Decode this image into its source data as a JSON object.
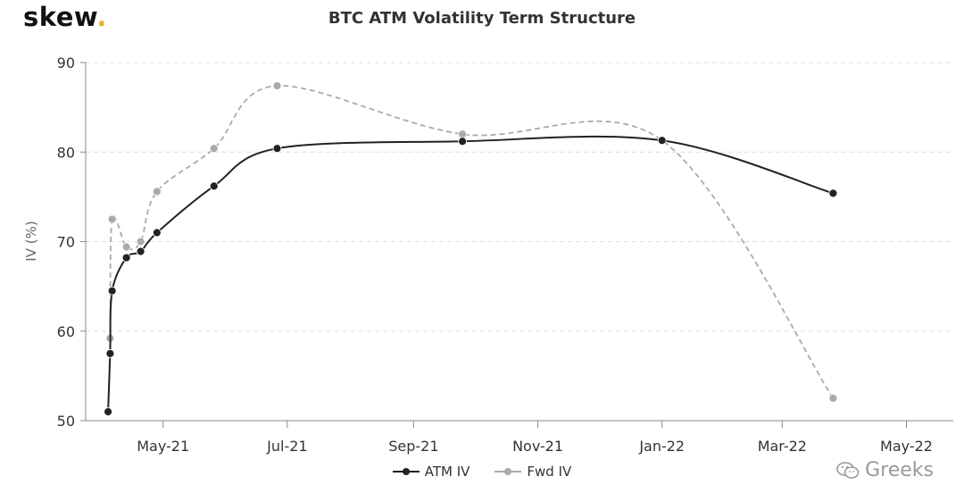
{
  "brand": {
    "name": "skew",
    "dot": ".",
    "dot_color": "#e8b227"
  },
  "watermark": {
    "text": "Greeks",
    "icon": "wechat-icon"
  },
  "colors": {
    "atm": "#222222",
    "fwd": "#aaaaaa",
    "grid": "#dddddd"
  },
  "chart_data": {
    "type": "line",
    "title": "BTC ATM Volatility Term Structure",
    "xlabel": "",
    "ylabel": "IV (%)",
    "ylim": [
      50,
      90
    ],
    "yticks": [
      50,
      60,
      70,
      80,
      90
    ],
    "xlim": [
      "2021-03-23",
      "2022-05-23"
    ],
    "xticks": [
      {
        "date": "2021-04-30",
        "label": "May-21"
      },
      {
        "date": "2021-06-30",
        "label": "Jul-21"
      },
      {
        "date": "2021-08-31",
        "label": "Sep-21"
      },
      {
        "date": "2021-10-31",
        "label": "Nov-21"
      },
      {
        "date": "2021-12-31",
        "label": "Jan-22"
      },
      {
        "date": "2022-02-28",
        "label": "Mar-22"
      },
      {
        "date": "2022-04-30",
        "label": "May-22"
      }
    ],
    "grid": "horizontal dashed",
    "legend_position": "bottom-center",
    "series": [
      {
        "name": "ATM IV",
        "style": "solid",
        "points": [
          {
            "x": "2021-04-03",
            "y": 51.0
          },
          {
            "x": "2021-04-04",
            "y": 57.5
          },
          {
            "x": "2021-04-05",
            "y": 64.5
          },
          {
            "x": "2021-04-12",
            "y": 68.2
          },
          {
            "x": "2021-04-19",
            "y": 68.9
          },
          {
            "x": "2021-04-27",
            "y": 71.0
          },
          {
            "x": "2021-05-25",
            "y": 76.2
          },
          {
            "x": "2021-06-25",
            "y": 80.4
          },
          {
            "x": "2021-09-24",
            "y": 81.2
          },
          {
            "x": "2021-12-31",
            "y": 81.3
          },
          {
            "x": "2022-03-25",
            "y": 75.4
          }
        ]
      },
      {
        "name": "Fwd IV",
        "style": "dashed",
        "points": [
          {
            "x": "2021-04-03",
            "y": 51.0
          },
          {
            "x": "2021-04-04",
            "y": 59.2
          },
          {
            "x": "2021-04-05",
            "y": 72.5
          },
          {
            "x": "2021-04-12",
            "y": 69.4
          },
          {
            "x": "2021-04-19",
            "y": 70.0
          },
          {
            "x": "2021-04-27",
            "y": 75.6
          },
          {
            "x": "2021-05-25",
            "y": 80.4
          },
          {
            "x": "2021-06-25",
            "y": 87.4
          },
          {
            "x": "2021-09-24",
            "y": 82.0
          },
          {
            "x": "2021-12-31",
            "y": 81.3
          },
          {
            "x": "2022-03-25",
            "y": 52.5
          }
        ]
      }
    ]
  }
}
